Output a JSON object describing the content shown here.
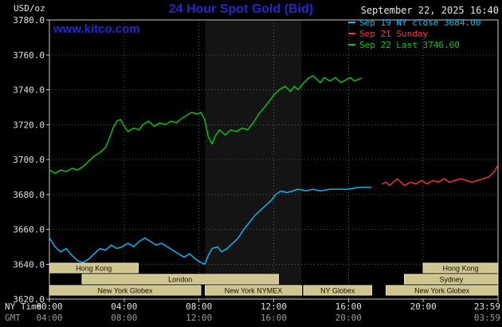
{
  "header": {
    "unit": "USD/oz",
    "title": "24 Hour Spot Gold (Bid)",
    "datetime": "September 22, 2025 16:40",
    "watermark": "www.kitco.com"
  },
  "legend": [
    {
      "label": "Sep 19 NY close 3684.00",
      "color": "#00bfff"
    },
    {
      "label": "Sep 21 Sunday",
      "color": "#ff3333"
    },
    {
      "label": "Sep 22 Last 3746.60",
      "color": "#00cc00"
    }
  ],
  "colors": {
    "accent_blue": "#2727cf",
    "text_light": "#e6e6e6",
    "grid": "#5a5a5a",
    "axis": "#c8c8c8",
    "tick_text": "#e0e0e0",
    "gmt_text": "#9a9a9a",
    "band": "rgba(255,255,255,0.08)",
    "session_fill": "#cfc58f",
    "session_border": "#e8e0b4",
    "session_text": "#141400"
  },
  "axes": {
    "y_ticks": [
      "3780.0",
      "3760.0",
      "3740.0",
      "3720.0",
      "3700.0",
      "3680.0",
      "3660.0",
      "3640.0",
      "3620.0"
    ],
    "x_hours": [
      0,
      4,
      8,
      12,
      16,
      20,
      24
    ],
    "x_ticks_ny": [
      "00:00",
      "04:00",
      "08:00",
      "12:00",
      "16:00",
      "20:00",
      "23:59"
    ],
    "x_ticks_gmt": [
      "04:00",
      "08:00",
      "12:00",
      "16:00",
      "20:00",
      "",
      "03:59"
    ],
    "ny_label": "NY Time",
    "gmt_label": "GMT"
  },
  "sessions": [
    {
      "label": "Hong Kong",
      "row": 0,
      "start": 0,
      "end": 4.75
    },
    {
      "label": "Hong Kong",
      "row": 0,
      "start": 20,
      "end": 24
    },
    {
      "label": "London",
      "row": 1,
      "start": 1.75,
      "end": 12.25
    },
    {
      "label": "Sydney",
      "row": 1,
      "start": 19,
      "end": 24
    },
    {
      "label": "New York Globex",
      "row": 2,
      "start": 0,
      "end": 8.1
    },
    {
      "label": "New York NYMEX",
      "row": 2,
      "start": 8.33,
      "end": 13.5
    },
    {
      "label": "NY Globex",
      "row": 2,
      "start": 13.6,
      "end": 17.25
    },
    {
      "label": "New York Globex",
      "row": 2,
      "start": 18,
      "end": 24
    }
  ],
  "chart_data": {
    "type": "line",
    "title": "24 Hour Spot Gold (Bid)",
    "ylabel": "USD/oz",
    "ylim": [
      3620,
      3780
    ],
    "y_tick_step": 20,
    "xlim": [
      0,
      24
    ],
    "x_unit": "hours, NY time",
    "grid": true,
    "legend_position": "top-right",
    "highlight_band_hours": [
      8.33,
      13.5
    ],
    "series": [
      {
        "id": "sep19",
        "name": "Sep 19 NY close",
        "color": "#00bfff",
        "close": 3684.0,
        "points": [
          [
            0,
            3655
          ],
          [
            0.3,
            3650
          ],
          [
            0.6,
            3647
          ],
          [
            0.9,
            3649
          ],
          [
            1.2,
            3645
          ],
          [
            1.5,
            3642
          ],
          [
            1.8,
            3641
          ],
          [
            2.1,
            3643
          ],
          [
            2.4,
            3646
          ],
          [
            2.7,
            3649
          ],
          [
            3,
            3648
          ],
          [
            3.3,
            3651
          ],
          [
            3.6,
            3649
          ],
          [
            3.9,
            3650
          ],
          [
            4.2,
            3652
          ],
          [
            4.5,
            3650
          ],
          [
            4.8,
            3653
          ],
          [
            5.1,
            3655
          ],
          [
            5.4,
            3653
          ],
          [
            5.7,
            3651
          ],
          [
            6,
            3652
          ],
          [
            6.3,
            3650
          ],
          [
            6.6,
            3648
          ],
          [
            6.9,
            3646
          ],
          [
            7.2,
            3644
          ],
          [
            7.5,
            3646
          ],
          [
            7.8,
            3643
          ],
          [
            8.1,
            3641
          ],
          [
            8.3,
            3640
          ],
          [
            8.5,
            3645
          ],
          [
            8.7,
            3649
          ],
          [
            9,
            3650
          ],
          [
            9.2,
            3647
          ],
          [
            9.5,
            3649
          ],
          [
            9.8,
            3652
          ],
          [
            10.1,
            3655
          ],
          [
            10.4,
            3660
          ],
          [
            10.7,
            3664
          ],
          [
            11,
            3668
          ],
          [
            11.3,
            3671
          ],
          [
            11.6,
            3674
          ],
          [
            11.9,
            3677
          ],
          [
            12.1,
            3680
          ],
          [
            12.4,
            3682
          ],
          [
            12.7,
            3681
          ],
          [
            13,
            3682
          ],
          [
            13.3,
            3683
          ],
          [
            13.7,
            3682
          ],
          [
            14.1,
            3683
          ],
          [
            14.5,
            3682
          ],
          [
            15,
            3683
          ],
          [
            15.5,
            3683
          ],
          [
            16,
            3683
          ],
          [
            16.5,
            3684
          ],
          [
            17,
            3684
          ],
          [
            17.2,
            3684
          ]
        ]
      },
      {
        "id": "sep21",
        "name": "Sep 21 Sunday",
        "color": "#ff3333",
        "points": [
          [
            17.8,
            3686
          ],
          [
            18,
            3687
          ],
          [
            18.2,
            3685
          ],
          [
            18.4,
            3687
          ],
          [
            18.6,
            3689
          ],
          [
            18.8,
            3687
          ],
          [
            19,
            3685
          ],
          [
            19.3,
            3687
          ],
          [
            19.6,
            3686
          ],
          [
            19.9,
            3688
          ],
          [
            20.2,
            3686
          ],
          [
            20.5,
            3688
          ],
          [
            20.8,
            3687
          ],
          [
            21.1,
            3689
          ],
          [
            21.4,
            3687
          ],
          [
            21.7,
            3688
          ],
          [
            22,
            3689
          ],
          [
            22.3,
            3688
          ],
          [
            22.6,
            3687
          ],
          [
            22.9,
            3688
          ],
          [
            23.2,
            3689
          ],
          [
            23.5,
            3690
          ],
          [
            23.8,
            3693
          ],
          [
            24,
            3697
          ]
        ]
      },
      {
        "id": "sep22",
        "name": "Sep 22",
        "color": "#00cc00",
        "last": 3746.6,
        "points": [
          [
            0,
            3694
          ],
          [
            0.3,
            3692
          ],
          [
            0.6,
            3694
          ],
          [
            0.9,
            3693
          ],
          [
            1.2,
            3695
          ],
          [
            1.5,
            3694
          ],
          [
            1.8,
            3696
          ],
          [
            2.1,
            3699
          ],
          [
            2.4,
            3702
          ],
          [
            2.7,
            3704
          ],
          [
            3,
            3707
          ],
          [
            3.2,
            3712
          ],
          [
            3.4,
            3718
          ],
          [
            3.6,
            3722
          ],
          [
            3.8,
            3723
          ],
          [
            4,
            3719
          ],
          [
            4.2,
            3716
          ],
          [
            4.5,
            3718
          ],
          [
            4.8,
            3717
          ],
          [
            5,
            3720
          ],
          [
            5.3,
            3722
          ],
          [
            5.6,
            3719
          ],
          [
            5.9,
            3721
          ],
          [
            6.2,
            3720
          ],
          [
            6.5,
            3722
          ],
          [
            6.8,
            3721
          ],
          [
            7,
            3723
          ],
          [
            7.3,
            3725
          ],
          [
            7.6,
            3727
          ],
          [
            7.9,
            3726
          ],
          [
            8.1,
            3727
          ],
          [
            8.3,
            3723
          ],
          [
            8.5,
            3713
          ],
          [
            8.7,
            3709
          ],
          [
            8.9,
            3714
          ],
          [
            9.1,
            3717
          ],
          [
            9.4,
            3714
          ],
          [
            9.7,
            3717
          ],
          [
            10,
            3716
          ],
          [
            10.3,
            3718
          ],
          [
            10.6,
            3717
          ],
          [
            10.9,
            3721
          ],
          [
            11.2,
            3726
          ],
          [
            11.5,
            3730
          ],
          [
            11.8,
            3734
          ],
          [
            12,
            3737
          ],
          [
            12.3,
            3740
          ],
          [
            12.6,
            3742
          ],
          [
            12.9,
            3739
          ],
          [
            13.1,
            3742
          ],
          [
            13.3,
            3740
          ],
          [
            13.6,
            3744
          ],
          [
            13.9,
            3747
          ],
          [
            14.1,
            3748
          ],
          [
            14.3,
            3746
          ],
          [
            14.5,
            3744
          ],
          [
            14.7,
            3747
          ],
          [
            15,
            3745
          ],
          [
            15.3,
            3747
          ],
          [
            15.6,
            3744
          ],
          [
            15.9,
            3746
          ],
          [
            16.1,
            3747
          ],
          [
            16.3,
            3745
          ],
          [
            16.67,
            3746.6
          ]
        ]
      }
    ]
  }
}
